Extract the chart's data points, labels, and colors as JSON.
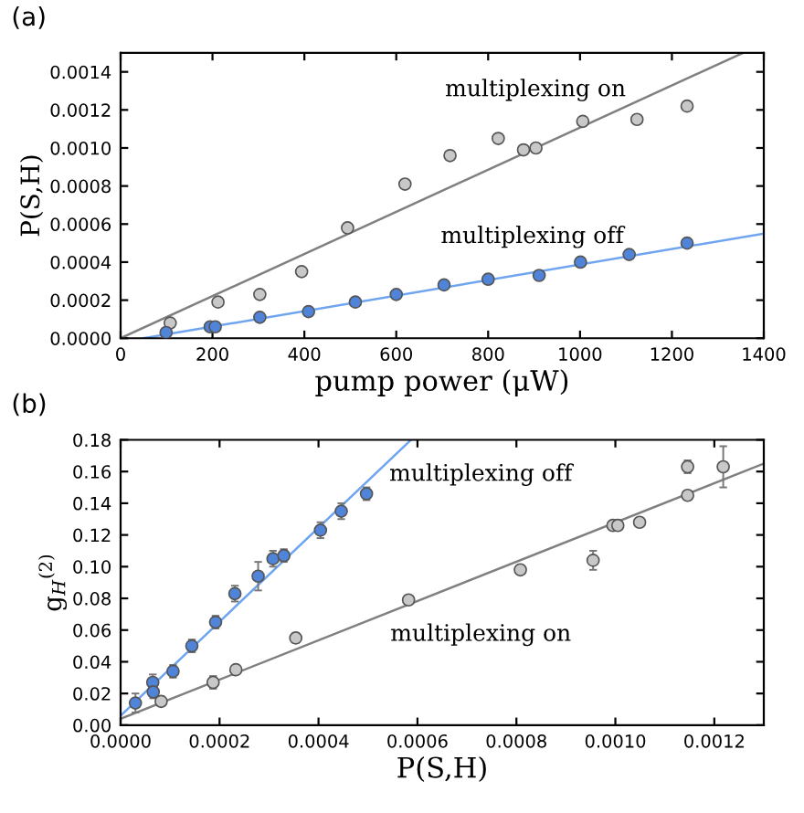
{
  "chart_data": [
    {
      "type": "scatter",
      "title": "(a)",
      "xlabel": "pump power (μW)",
      "ylabel": "P(S,H)",
      "xlim": [
        0,
        1400
      ],
      "ylim": [
        0,
        0.0015
      ],
      "xticks": [
        0,
        200,
        400,
        600,
        800,
        1000,
        1200,
        1400
      ],
      "yticks": [
        {
          "value": 0,
          "label": "0.0000"
        },
        {
          "value": 0.0002,
          "label": "0.0002"
        },
        {
          "value": 0.0004,
          "label": "0.0004"
        },
        {
          "value": 0.0006,
          "label": "0.0006"
        },
        {
          "value": 0.0008,
          "label": "0.0008"
        },
        {
          "value": 0.001,
          "label": "0.0010"
        },
        {
          "value": 0.0012,
          "label": "0.0012"
        },
        {
          "value": 0.0014,
          "label": "0.0014"
        }
      ],
      "marker": "circle",
      "series": [
        {
          "type": "line",
          "marker": "none",
          "color": "#808080",
          "x": [
            0,
            1355
          ],
          "values": [
            0,
            0.0015
          ]
        },
        {
          "type": "line",
          "marker": "none",
          "color": "#6fa5f0",
          "x": [
            50,
            1400
          ],
          "values": [
            0,
            0.00055
          ]
        },
        {
          "color": "#c8c8c8",
          "x": [
            108,
            212,
            303,
            394,
            494,
            619,
            717,
            822,
            877,
            904,
            1006,
            1124,
            1233
          ],
          "values": [
            8e-05,
            0.00019,
            0.00023,
            0.00035,
            0.00058,
            0.00081,
            0.00096,
            0.00105,
            0.00099,
            0.001,
            0.00114,
            0.00115,
            0.00122
          ]
        },
        {
          "color": "#4f84d8",
          "x": [
            99,
            195,
            206,
            303,
            409,
            511,
            600,
            704,
            800,
            911,
            1001,
            1107,
            1233
          ],
          "values": [
            3e-05,
            6e-05,
            6e-05,
            0.00011,
            0.00014,
            0.00019,
            0.00023,
            0.00028,
            0.00031,
            0.00033,
            0.0004,
            0.00044,
            0.0005
          ]
        }
      ],
      "annotations": [
        "multiplexing on",
        "multiplexing off"
      ]
    },
    {
      "type": "scatter",
      "title": "(b)",
      "xlabel": "P(S,H)",
      "ylabel": "g$_{H}$$^{(2)}$",
      "xlim": [
        0,
        0.0013
      ],
      "ylim": [
        0,
        0.18
      ],
      "xticks": [
        {
          "value": 0,
          "label": "0.0000"
        },
        {
          "value": 0.0002,
          "label": "0.0002"
        },
        {
          "value": 0.0004,
          "label": "0.0004"
        },
        {
          "value": 0.0006,
          "label": "0.0006"
        },
        {
          "value": 0.0008,
          "label": "0.0008"
        },
        {
          "value": 0.001,
          "label": "0.0010"
        },
        {
          "value": 0.0012,
          "label": "0.0012"
        }
      ],
      "yticks": [
        {
          "value": 0,
          "label": "0.00"
        },
        {
          "value": 0.02,
          "label": "0.02"
        },
        {
          "value": 0.04,
          "label": "0.04"
        },
        {
          "value": 0.06,
          "label": "0.06"
        },
        {
          "value": 0.08,
          "label": "0.08"
        },
        {
          "value": 0.1,
          "label": "0.10"
        },
        {
          "value": 0.12,
          "label": "0.12"
        },
        {
          "value": 0.14,
          "label": "0.14"
        },
        {
          "value": 0.16,
          "label": "0.16"
        },
        {
          "value": 0.18,
          "label": "0.18"
        }
      ],
      "marker": "circle",
      "series": [
        {
          "type": "line",
          "marker": "none",
          "color": "#6fa5f0",
          "x": [
            0,
            0.000587
          ],
          "values": [
            0.006,
            0.18
          ]
        },
        {
          "type": "line",
          "marker": "none",
          "color": "#808080",
          "x": [
            0,
            0.0013
          ],
          "values": [
            0.004,
            0.165
          ]
        },
        {
          "color": "#4f84d8",
          "x": [
            3e-05,
            6.5e-05,
            6.6e-05,
            0.000106,
            0.000144,
            0.000192,
            0.000231,
            0.000278,
            0.000308,
            0.00033,
            0.000404,
            0.000446,
            0.000497
          ],
          "values": [
            0.014,
            0.027,
            0.021,
            0.034,
            0.05,
            0.065,
            0.083,
            0.094,
            0.105,
            0.107,
            0.123,
            0.135,
            0.146
          ],
          "errors": [
            0.006,
            0.005,
            0.004,
            0.004,
            0.004,
            0.004,
            0.005,
            0.009,
            0.005,
            0.004,
            0.005,
            0.005,
            0.004
          ]
        },
        {
          "color": "#c8c8c8",
          "x": [
            8.2e-05,
            0.000187,
            0.000233,
            0.000354,
            0.000582,
            0.000808,
            0.000955,
            0.000995,
            0.001005,
            0.001049,
            0.001146,
            0.001146,
            0.001218
          ],
          "values": [
            0.015,
            0.027,
            0.035,
            0.055,
            0.079,
            0.098,
            0.104,
            0.126,
            0.126,
            0.128,
            0.145,
            0.163,
            0.163
          ],
          "errors": [
            0.003,
            0.004,
            0.003,
            0.003,
            0.002,
            0.002,
            0.006,
            0.002,
            0.002,
            0.002,
            0.002,
            0.004,
            0.013
          ]
        }
      ],
      "annotations": [
        "multiplexing off",
        "multiplexing on"
      ]
    }
  ]
}
